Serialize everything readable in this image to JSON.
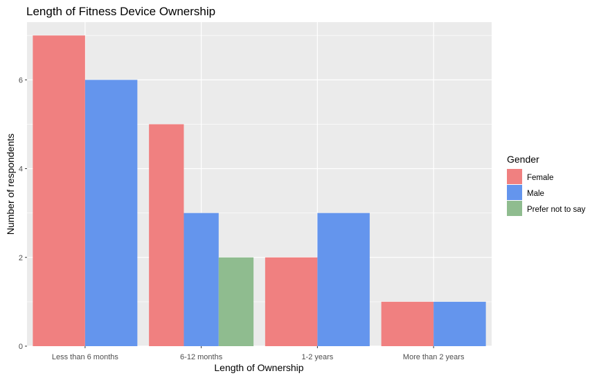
{
  "chart_data": {
    "type": "bar",
    "title": "Length of Fitness Device Ownership",
    "xlabel": "Length of Ownership",
    "ylabel": "Number of respondents",
    "categories": [
      "Less than 6 months",
      "6-12 months",
      "1-2 years",
      "More than 2 years"
    ],
    "series": [
      {
        "name": "Female",
        "values": [
          7,
          5,
          2,
          1
        ]
      },
      {
        "name": "Male",
        "values": [
          6,
          3,
          3,
          1
        ]
      },
      {
        "name": "Prefer not to say",
        "values": [
          null,
          2,
          null,
          null
        ]
      }
    ],
    "ylim": [
      0,
      7.3
    ],
    "yticks": [
      0,
      2,
      4,
      6
    ],
    "grid": true,
    "legend_title": "Gender",
    "legend_position": "right",
    "colors": {
      "Female": "#F08080",
      "Male": "#6495ED",
      "Prefer not to say": "#8FBC8F",
      "panel": "#EBEBEB",
      "grid": "#FFFFFF"
    }
  }
}
